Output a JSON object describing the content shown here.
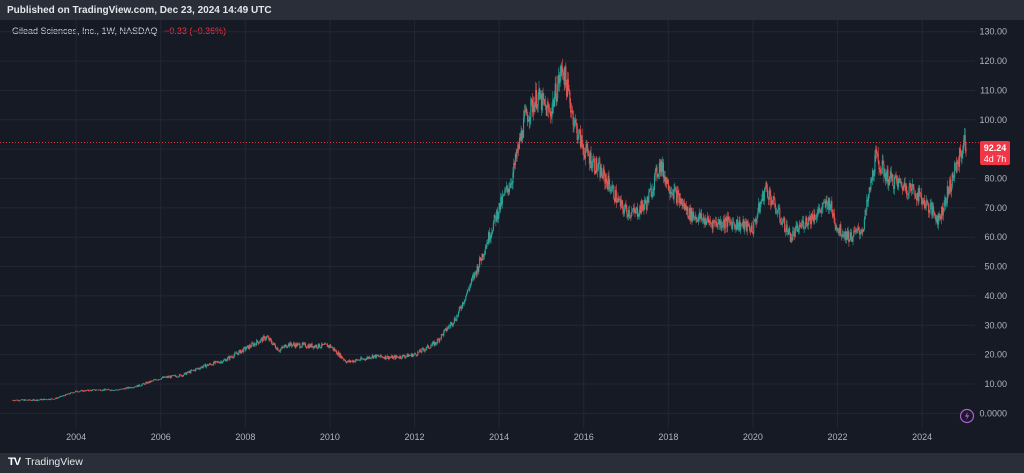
{
  "header": {
    "published": "Published on TradingView.com, Dec 23, 2024 14:49 UTC"
  },
  "footer": {
    "brand_logo": "TV",
    "brand_name": "TradingView"
  },
  "legend": {
    "symbol": "Gilead Sciences, Inc., 1W, NASDAQ",
    "change": "−0.33 (−0.36%)"
  },
  "price_badge": {
    "price": "92.24",
    "countdown": "4d 7h"
  },
  "colors": {
    "up": "#26a69a",
    "down": "#ef5350",
    "grid": "#232733",
    "axis_text": "#b2b5be",
    "badge": "#f23645"
  },
  "chart_data": {
    "type": "candlestick",
    "title": "",
    "xlabel": "",
    "ylabel": "",
    "x_ticks": [
      "2004",
      "2006",
      "2008",
      "2010",
      "2012",
      "2014",
      "2016",
      "2018",
      "2020",
      "2022",
      "2024"
    ],
    "y_ticks": [
      "0.0000",
      "10.00",
      "20.00",
      "30.00",
      "40.00",
      "50.00",
      "60.00",
      "70.00",
      "80.00",
      "90.00",
      "100.00",
      "110.00",
      "120.00",
      "130.00"
    ],
    "xlim": [
      2002.2,
      2025.25
    ],
    "ylim": [
      -5,
      134
    ],
    "last_price": 92.24,
    "grid": true,
    "series": [
      {
        "x": [
          2002.5,
          2003.0,
          2003.5,
          2004.0,
          2004.5,
          2005.0,
          2005.5,
          2006.0,
          2006.5,
          2007.0,
          2007.5,
          2008.0,
          2008.5,
          2008.8,
          2009.0,
          2009.5,
          2010.0,
          2010.4,
          2010.8,
          2011.0,
          2011.5,
          2012.0,
          2012.5,
          2013.0,
          2013.5,
          2014.0,
          2014.3,
          2014.6,
          2014.9,
          2015.2,
          2015.5,
          2015.8,
          2016.0,
          2016.3,
          2016.6,
          2016.9,
          2017.2,
          2017.5,
          2017.8,
          2018.0,
          2018.5,
          2019.0,
          2019.5,
          2020.0,
          2020.3,
          2020.6,
          2020.9,
          2021.2,
          2021.5,
          2021.8,
          2022.0,
          2022.3,
          2022.6,
          2022.9,
          2023.2,
          2023.5,
          2023.8,
          2024.0,
          2024.4,
          2024.6,
          2024.9,
          2025.0
        ],
        "y": [
          4.5,
          4.5,
          5.0,
          7.5,
          8.0,
          8.0,
          9.5,
          12.0,
          13.0,
          16.0,
          18.0,
          22.0,
          26.0,
          21.5,
          23.5,
          23.0,
          23.0,
          17.5,
          18.5,
          19.5,
          19.0,
          20.0,
          24.0,
          33.0,
          50.0,
          70.0,
          80.0,
          100.0,
          108.0,
          102.0,
          118.0,
          98.0,
          90.0,
          84.0,
          78.0,
          70.0,
          68.0,
          72.0,
          85.0,
          78.0,
          68.0,
          65.0,
          65.0,
          63.0,
          77.0,
          68.0,
          60.0,
          65.0,
          68.0,
          72.0,
          63.0,
          60.0,
          63.0,
          87.0,
          80.0,
          78.0,
          76.0,
          73.0,
          66.0,
          75.0,
          88.0,
          92.24
        ]
      }
    ]
  }
}
